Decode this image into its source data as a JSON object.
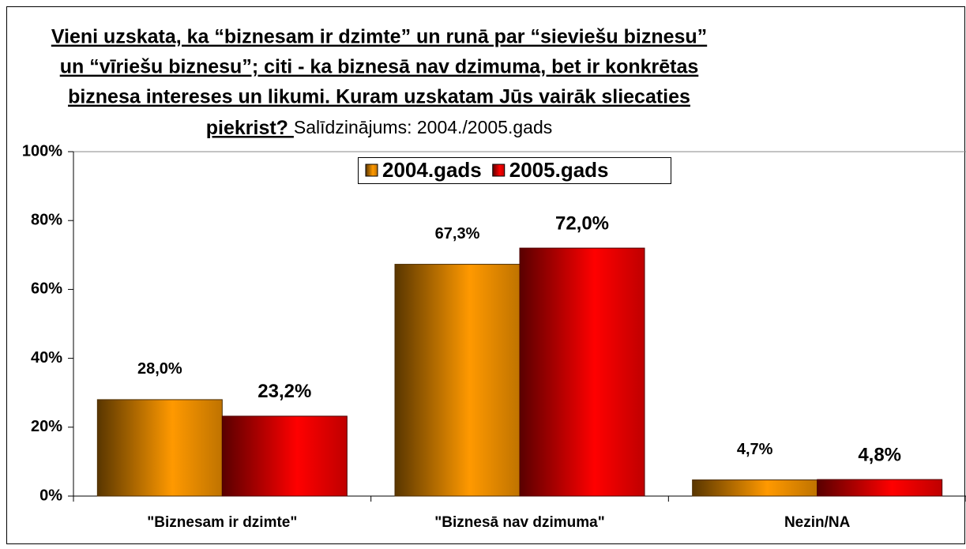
{
  "chart_data": {
    "type": "bar",
    "title": [
      "Vieni uzskata, ka “biznesam ir dzimte” un runā par “sieviešu biznesu”",
      "un “vīriešu biznesu”; citi - ka biznesā nav dzimuma, bet ir konkrētas",
      "biznesa intereses un likumi. Kuram uzskatam Jūs vairāk sliecaties",
      "piekrist? "
    ],
    "subtitle": "Salīdzinājums: 2004./2005.gads",
    "categories": [
      "\"Biznesam ir dzimte\"",
      "\"Biznesā nav dzimuma\"",
      "Nezin/NA"
    ],
    "series": [
      {
        "name": "2004.gads",
        "color": "#ff9900",
        "values": [
          28.0,
          67.3,
          4.7
        ],
        "value_labels": [
          "28,0%",
          "67,3%",
          "4,7%"
        ]
      },
      {
        "name": "2005.gads",
        "color": "#ff0000",
        "values": [
          23.2,
          72.0,
          4.8
        ],
        "value_labels": [
          "23,2%",
          "72,0%",
          "4,8%"
        ]
      }
    ],
    "ylim": [
      0,
      100
    ],
    "yticks": [
      {
        "value": 0,
        "label": "0%"
      },
      {
        "value": 20,
        "label": "20%"
      },
      {
        "value": 40,
        "label": "40%"
      },
      {
        "value": 60,
        "label": "60%"
      },
      {
        "value": 80,
        "label": "80%"
      },
      {
        "value": 100,
        "label": "100%"
      }
    ],
    "legend": "top"
  }
}
